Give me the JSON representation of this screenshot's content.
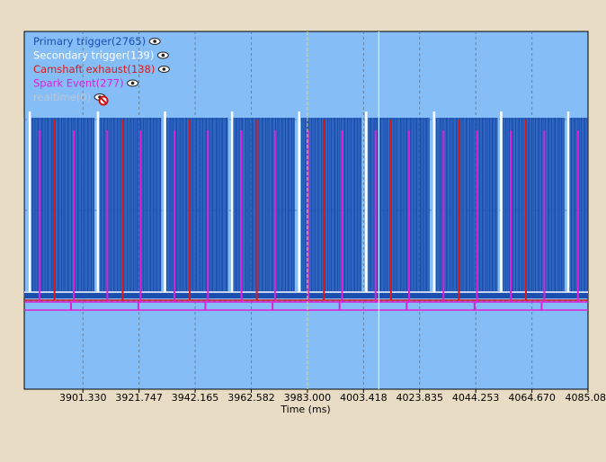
{
  "chart_data": {
    "type": "line",
    "title": "",
    "xlabel": "Time (ms)",
    "xlim": [
      3880.0,
      4085.08
    ],
    "tick_values": [
      3901.33,
      3921.747,
      3942.165,
      3962.582,
      3983.0,
      4003.418,
      4023.835,
      4044.253,
      4064.67,
      4085.08
    ],
    "tick_labels": [
      "3901.330",
      "3921.747",
      "3942.165",
      "3962.582",
      "3983.000",
      "4003.418",
      "4023.835",
      "4044.253",
      "4064.670",
      "4085.08"
    ],
    "cursor_time": 3983.0,
    "marker_time": 4009.0,
    "grid": true,
    "legend_placement": "top-left",
    "colors": {
      "plot_background": "#85bdf7",
      "primary": "#1a4fb0",
      "secondary": "#ffffff",
      "camshaft": "#d81a1a",
      "spark": "#e020d8",
      "realtime": "#b8c8d8",
      "cursor": "#f0e060",
      "marker": "#d8f0ff"
    },
    "series": [
      {
        "name": "Primary trigger(2765)",
        "color": "#1a4fb0",
        "visible": true,
        "icon": "eye-icon"
      },
      {
        "name": "Secondary trigger(139)",
        "color": "#ffffff",
        "visible": true,
        "icon": "eye-icon"
      },
      {
        "name": "Camshaft exhaust(138)",
        "color": "#d81a1a",
        "visible": true,
        "icon": "eye-icon"
      },
      {
        "name": "Spark Event(277)",
        "color": "#e020d8",
        "visible": true,
        "icon": "eye-icon"
      },
      {
        "name": "realtime(0)",
        "color": "#b8c8d8",
        "visible": false,
        "icon": "eye-hidden-icon"
      }
    ],
    "secondary_trigger_times": [
      3882.0,
      3906.8,
      3931.2,
      3955.6,
      3980.0,
      4004.4,
      4029.1,
      4053.5,
      4077.9
    ],
    "camshaft_times": [
      3891.0,
      3915.8,
      3940.2,
      3964.6,
      3989.0,
      4013.4,
      4038.1,
      4062.5
    ],
    "spark_times": [
      3885.5,
      3898.0,
      3910.2,
      3922.3,
      3934.6,
      3946.8,
      3959.0,
      3971.2,
      3983.4,
      3995.6,
      4007.8,
      4020.0,
      4032.5,
      4044.7,
      4057.0,
      4069.2,
      4081.4
    ],
    "spark_low_times": [
      3897.0,
      3921.5,
      3945.9,
      3970.3,
      3994.7,
      4019.1,
      4043.8,
      4068.2
    ],
    "primary_gaps": [
      3881.5,
      3906.3,
      3930.7,
      3955.1,
      3979.5,
      4003.9,
      4028.6,
      4053.0,
      4077.4
    ],
    "primary_gap_width": 2.0,
    "primary_tooth_spacing": 0.45
  }
}
